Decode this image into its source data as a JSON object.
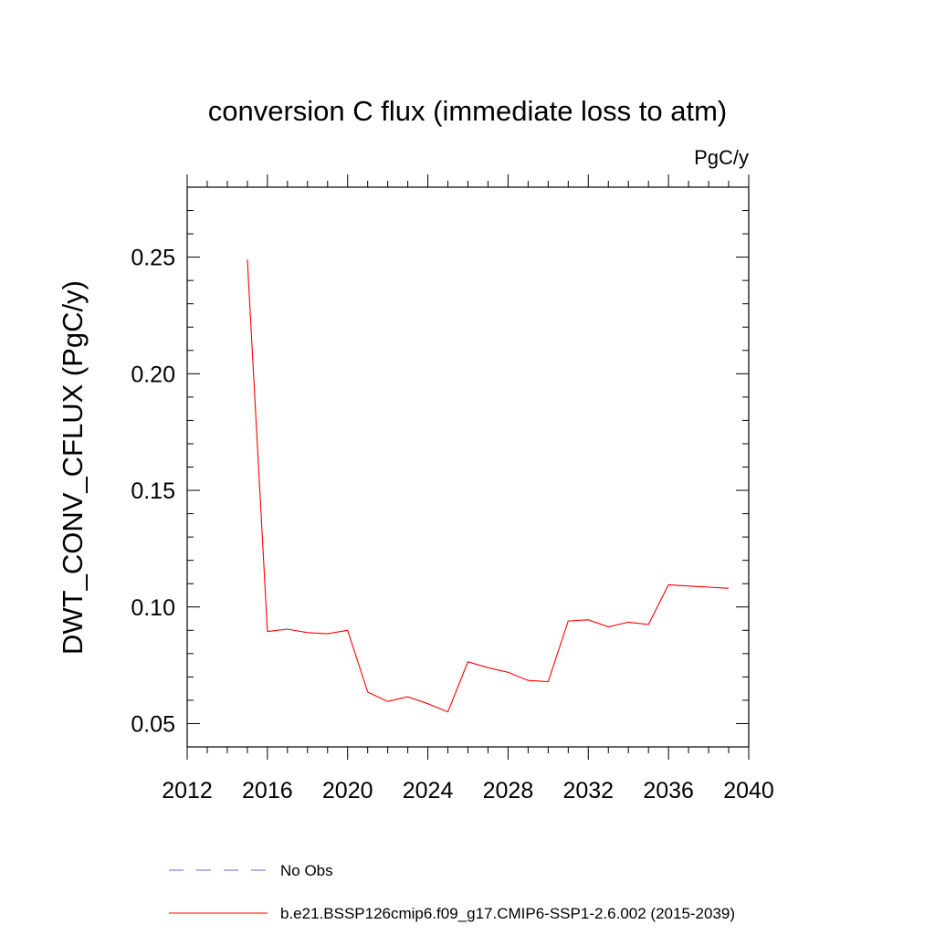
{
  "chart_data": {
    "type": "line",
    "title": "conversion C flux (immediate loss to atm)",
    "units_label": "PgC/y",
    "ylabel": "DWT_CONV_CFLUX  (PgC/y)",
    "xlabel": "",
    "xlim": [
      2012,
      2040
    ],
    "ylim": [
      0.04,
      0.28
    ],
    "xticks": [
      2012,
      2016,
      2020,
      2024,
      2028,
      2032,
      2036,
      2040
    ],
    "xtick_labels": [
      "2012",
      "2016",
      "2020",
      "2024",
      "2028",
      "2032",
      "2036",
      "2040"
    ],
    "yticks": [
      0.05,
      0.1,
      0.15,
      0.2,
      0.25
    ],
    "ytick_labels": [
      "0.05",
      "0.10",
      "0.15",
      "0.20",
      "0.25"
    ],
    "grid": false,
    "legend_placement": "bottom",
    "series": [
      {
        "name": "b.e21.BSSP126cmip6.f09_g17.CMIP6-SSP1-2.6.002 (2015-2039)",
        "color": "#ff0000",
        "style": "solid",
        "x": [
          2015,
          2016,
          2017,
          2018,
          2019,
          2020,
          2021,
          2022,
          2023,
          2024,
          2025,
          2026,
          2027,
          2028,
          2029,
          2030,
          2031,
          2032,
          2033,
          2034,
          2035,
          2036,
          2037,
          2038,
          2039
        ],
        "y": [
          0.249,
          0.0895,
          0.0905,
          0.089,
          0.0885,
          0.09,
          0.0635,
          0.0595,
          0.0615,
          0.0585,
          0.055,
          0.0765,
          0.074,
          0.072,
          0.0685,
          0.068,
          0.094,
          0.0945,
          0.0915,
          0.0935,
          0.0925,
          0.1095,
          0.109,
          0.1085,
          0.108
        ]
      }
    ],
    "legend": [
      {
        "label": "No Obs",
        "color": "#6666cc",
        "style": "dashed"
      },
      {
        "label": "b.e21.BSSP126cmip6.f09_g17.CMIP6-SSP1-2.6.002 (2015-2039)",
        "color": "#ff0000",
        "style": "solid"
      }
    ]
  }
}
